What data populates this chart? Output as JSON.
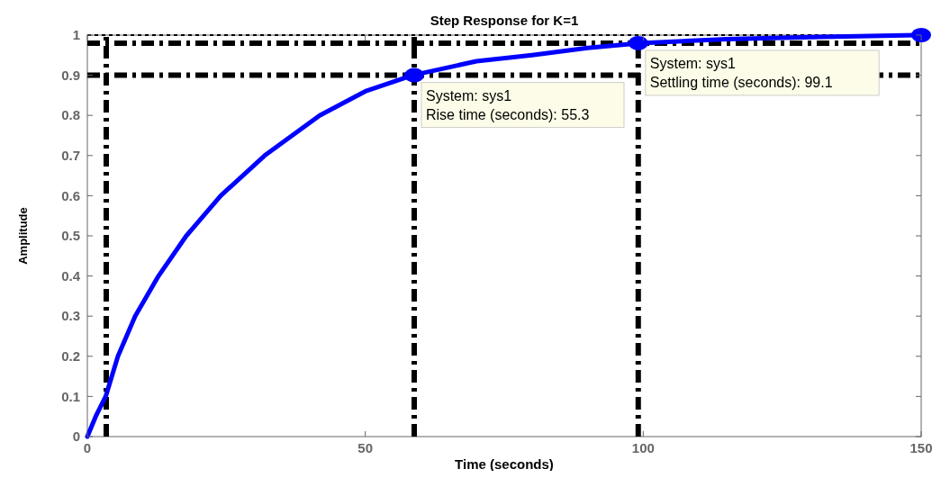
{
  "chart_data": {
    "type": "line",
    "title": "Step Response for K=1",
    "xlabel": "Time (seconds)",
    "ylabel": "Amplitude",
    "xlim": [
      0,
      150
    ],
    "xticks": [
      0,
      50,
      100,
      150
    ],
    "ylim": [
      0,
      1
    ],
    "yticks": [
      0,
      0.1,
      0.2,
      0.3,
      0.4,
      0.5,
      0.6,
      0.7,
      0.8,
      0.9,
      1
    ],
    "grid": false,
    "line_style": "solid",
    "series": [
      {
        "color": "#0000ff",
        "marker": "none",
        "x": [
          0,
          1.5,
          3.3,
          5.5,
          8.6,
          12.8,
          17.8,
          24,
          31.9,
          41.8,
          50,
          58.5,
          70,
          80,
          90,
          99.3,
          115,
          130,
          150
        ],
        "values": [
          0,
          0.05,
          0.1,
          0.2,
          0.3,
          0.4,
          0.5,
          0.6,
          0.7,
          0.8,
          0.86,
          0.9,
          0.935,
          0.95,
          0.968,
          0.98,
          0.99,
          0.995,
          1
        ]
      },
      {
        "type": "scatter",
        "color": "#0000ff",
        "marker": "circle",
        "x": [
          58.8,
          99.1,
          150
        ],
        "values": [
          0.9,
          0.98,
          1
        ]
      }
    ],
    "ref_lines": [
      {
        "axis": "y",
        "value": 1,
        "line_style": "dotted",
        "color": "#000000"
      },
      {
        "axis": "y",
        "value": 0.98,
        "line_style": "dashed",
        "color": "#000000"
      },
      {
        "axis": "y",
        "value": 0.9,
        "line_style": "dashed",
        "color": "#000000"
      },
      {
        "axis": "x",
        "value": 3.4,
        "line_style": "dashed",
        "color": "#000000"
      },
      {
        "axis": "x",
        "value": 58.8,
        "line_style": "dashed",
        "color": "#000000"
      },
      {
        "axis": "x",
        "value": 99.1,
        "line_style": "dashed",
        "color": "#000000"
      }
    ],
    "annotations": [
      {
        "text": "System: sys1\nRise time (seconds): 55.3",
        "x": 58.8,
        "y": 0.9
      },
      {
        "text": "System: sys1\nSettling time (seconds): 99.1",
        "x": 99.1,
        "y": 0.98
      }
    ]
  }
}
